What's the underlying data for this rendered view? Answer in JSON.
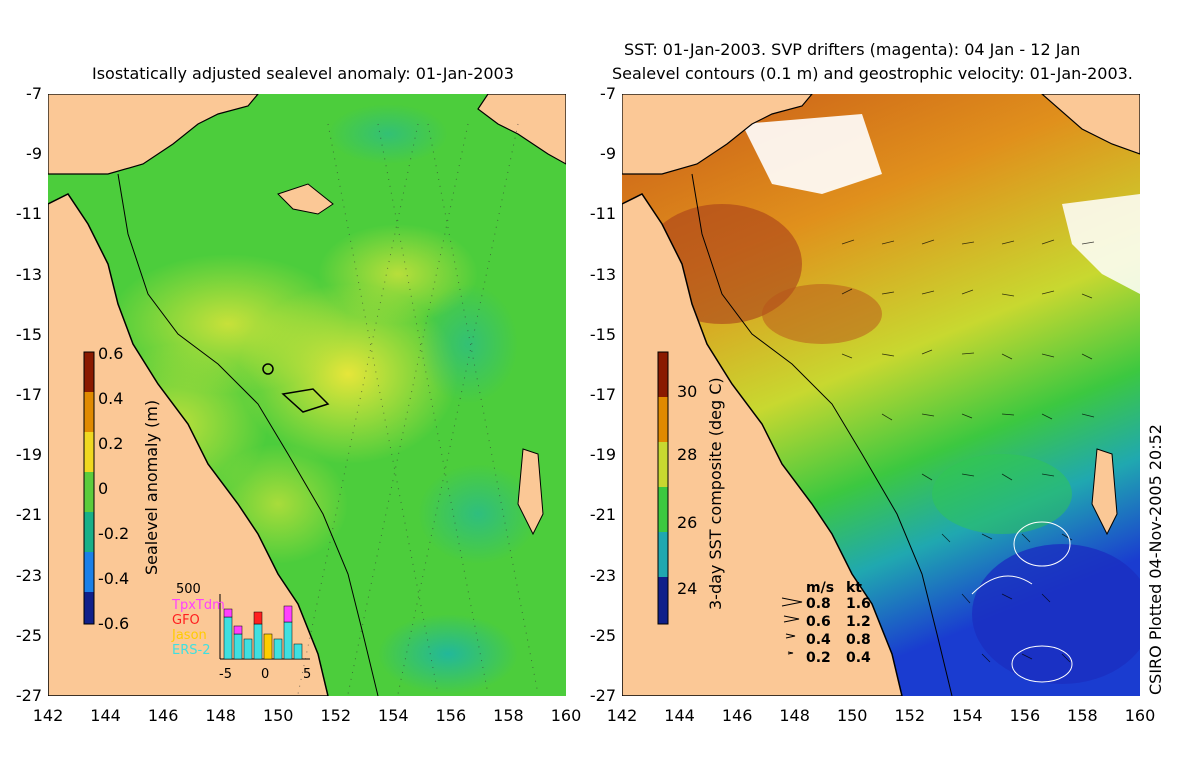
{
  "left_map": {
    "title": "Isostatically adjusted sealevel anomaly: 01-Jan-2003",
    "colorbar": {
      "label": "Sealevel anomaly (m)",
      "ticks": [
        "0.6",
        "0.4",
        "0.2",
        "0",
        "-0.2",
        "-0.4",
        "-0.6"
      ]
    },
    "inset": {
      "ymax_label": "500",
      "satellites": [
        "TpxTdm",
        "GFO",
        "Jason",
        "ERS-2"
      ],
      "satellite_colors": [
        "#ff40ff",
        "#ff2020",
        "#ffcc00",
        "#40e0e0"
      ],
      "xticks": [
        "-5",
        "0",
        "5"
      ]
    }
  },
  "right_map": {
    "title_line1": "SST: 01-Jan-2003. SVP drifters (magenta): 04 Jan - 12 Jan",
    "title_line2": "Sealevel contours (0.1 m) and geostrophic velocity: 01-Jan-2003.",
    "colorbar": {
      "label": "3-day SST composite (deg C)",
      "ticks": [
        "30",
        "28",
        "26",
        "24"
      ]
    },
    "velocity_legend": {
      "header_ms": "m/s",
      "header_kt": "kt",
      "rows": [
        {
          "ms": "0.8",
          "kt": "1.6"
        },
        {
          "ms": "0.6",
          "kt": "1.2"
        },
        {
          "ms": "0.4",
          "kt": "0.8"
        },
        {
          "ms": "0.2",
          "kt": "0.4"
        }
      ]
    },
    "credit": "CSIRO Plotted 04-Nov-2005 20:52"
  },
  "axes": {
    "y_labels": [
      "-7",
      "-9",
      "-11",
      "-13",
      "-15",
      "-17",
      "-19",
      "-21",
      "-23",
      "-25",
      "-27"
    ],
    "x_labels": [
      "142",
      "144",
      "146",
      "148",
      "150",
      "152",
      "154",
      "156",
      "158",
      "160"
    ]
  },
  "colors": {
    "land": "#fbc896",
    "sea_green": "#3dcc3d",
    "sea_yellow": "#c8e83a",
    "sst_orange": "#e07a1c",
    "sst_blue": "#1a4cd8"
  }
}
